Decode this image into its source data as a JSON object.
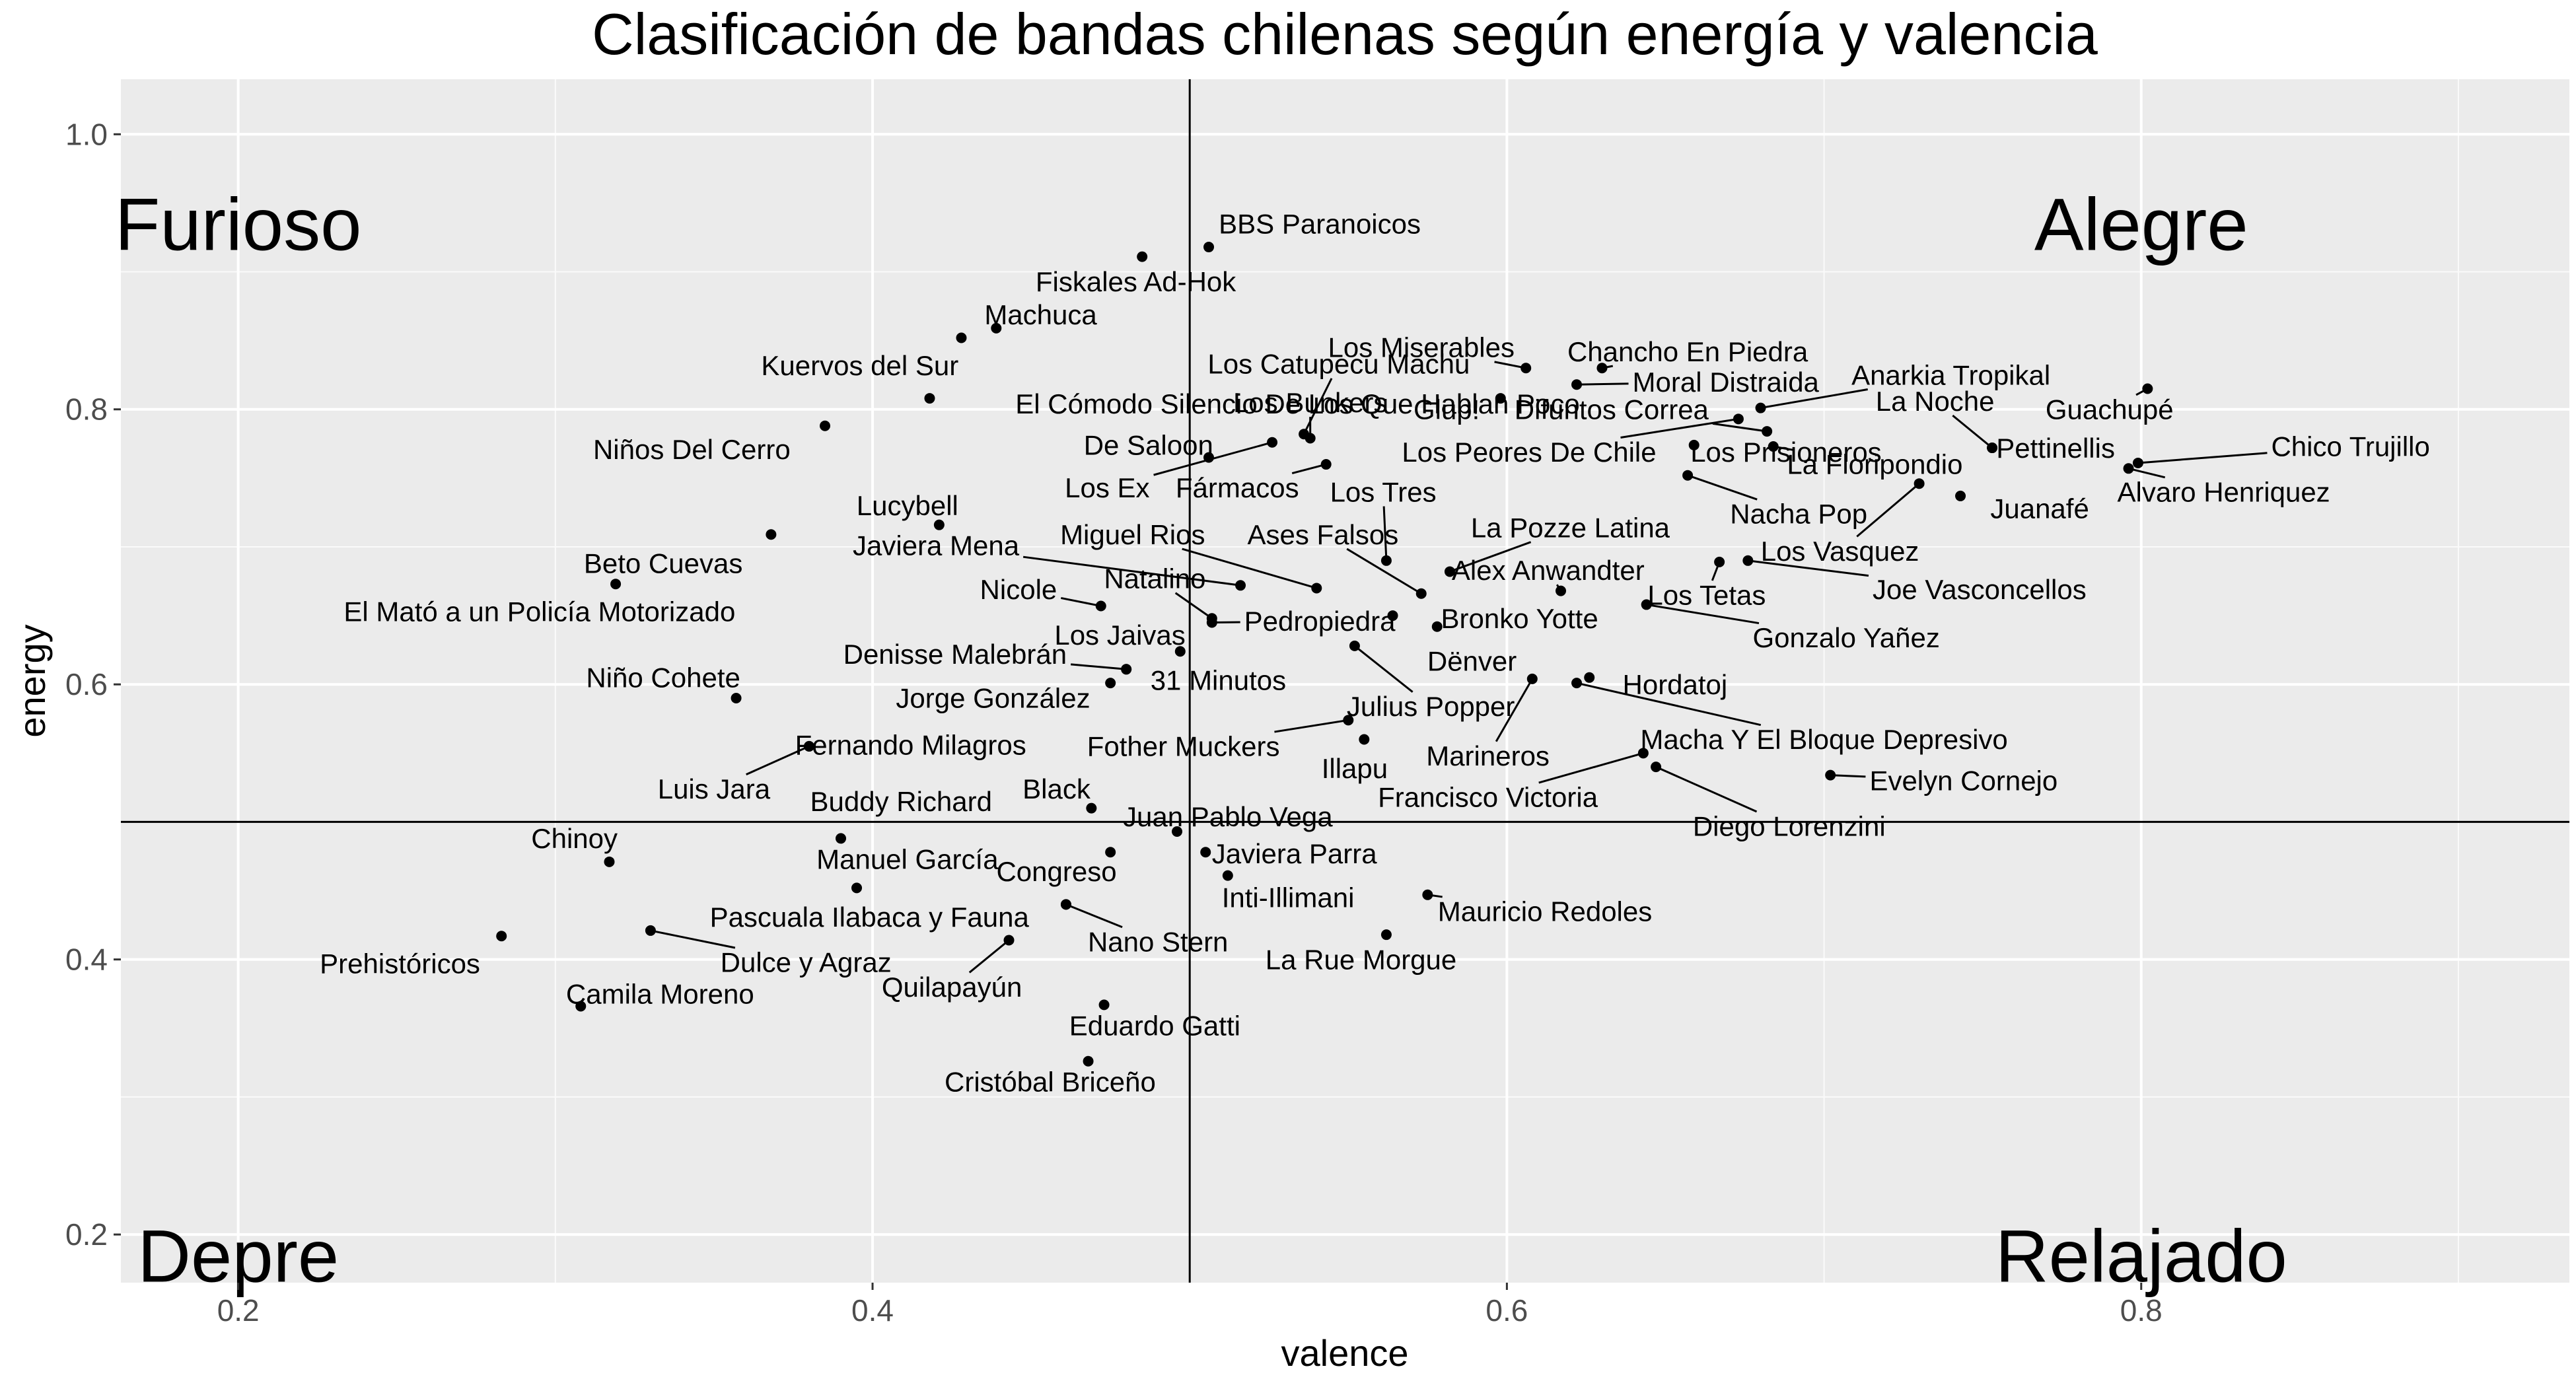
{
  "chart_data": {
    "type": "scatter",
    "title": "Clasificación de bandas chilenas según energía y valencia",
    "xlabel": "valence",
    "ylabel": "energy",
    "xlim": [
      0.163,
      0.935
    ],
    "ylim": [
      0.165,
      1.04
    ],
    "x_ticks": [
      0.2,
      0.4,
      0.6,
      0.8
    ],
    "y_ticks": [
      0.2,
      0.4,
      0.6,
      0.8,
      1.0
    ],
    "x_tick_labels": [
      "0.2",
      "0.4",
      "0.6",
      "0.8"
    ],
    "y_tick_labels": [
      "0.2",
      "0.4",
      "0.6",
      "0.8",
      "1.0"
    ],
    "grid": true,
    "reference_lines": {
      "x": 0.5,
      "y": 0.5
    },
    "quadrant_labels": [
      {
        "text": "Furioso",
        "x": 0.2,
        "y": 0.935
      },
      {
        "text": "Alegre",
        "x": 0.8,
        "y": 0.935
      },
      {
        "text": "Depre",
        "x": 0.2,
        "y": 0.185
      },
      {
        "text": "Relajado",
        "x": 0.8,
        "y": 0.185
      }
    ],
    "points": [
      {
        "name": "BBS Paranoicos",
        "x": 0.506,
        "y": 0.918,
        "lx": 0.541,
        "ly": 0.935
      },
      {
        "name": "Fiskales Ad-Hok",
        "x": 0.485,
        "y": 0.911,
        "lx": 0.483,
        "ly": 0.893
      },
      {
        "name": "Machuca",
        "x": 0.439,
        "y": 0.859,
        "lx": 0.453,
        "ly": 0.869
      },
      {
        "name": "Kuervos del Sur",
        "x": 0.428,
        "y": 0.852,
        "lx": 0.396,
        "ly": 0.832
      },
      {
        "name": "El Cómodo Silencio De Los Que Hablan Poco",
        "x": 0.418,
        "y": 0.808,
        "lx": 0.534,
        "ly": 0.804
      },
      {
        "name": "Niños Del Cerro",
        "x": 0.385,
        "y": 0.788,
        "lx": 0.343,
        "ly": 0.771
      },
      {
        "name": "Lucybell",
        "x": 0.421,
        "y": 0.716,
        "lx": 0.411,
        "ly": 0.73
      },
      {
        "name": "Beto Cuevas",
        "x": 0.368,
        "y": 0.709,
        "lx": 0.334,
        "ly": 0.688
      },
      {
        "name": "El Mató a un Policía Motorizado",
        "x": 0.319,
        "y": 0.673,
        "lx": 0.295,
        "ly": 0.653
      },
      {
        "name": "Niño Cohete",
        "x": 0.357,
        "y": 0.59,
        "lx": 0.334,
        "ly": 0.605
      },
      {
        "name": "Fernando Milagros",
        "x": 0.38,
        "y": 0.555,
        "lx": 0.412,
        "ly": 0.556,
        "lead": true
      },
      {
        "name": "Luis Jara",
        "x": 0.38,
        "y": 0.555,
        "lx": 0.35,
        "ly": 0.524,
        "lead": true
      },
      {
        "name": "Buddy Richard",
        "x": 0.39,
        "y": 0.488,
        "lx": 0.409,
        "ly": 0.515
      },
      {
        "name": "Chinoy",
        "x": 0.317,
        "y": 0.471,
        "lx": 0.306,
        "ly": 0.488
      },
      {
        "name": "Manuel García",
        "x": 0.395,
        "y": 0.452,
        "lx": 0.411,
        "ly": 0.473
      },
      {
        "name": "Prehistóricos",
        "x": 0.283,
        "y": 0.417,
        "lx": 0.251,
        "ly": 0.397
      },
      {
        "name": "Dulce y Agraz",
        "x": 0.33,
        "y": 0.421,
        "lx": 0.379,
        "ly": 0.398,
        "lead": true
      },
      {
        "name": "Camila Moreno",
        "x": 0.308,
        "y": 0.366,
        "lx": 0.333,
        "ly": 0.375
      },
      {
        "name": "Los Catupecu Machu",
        "x": 0.536,
        "y": 0.782,
        "lx": 0.547,
        "ly": 0.833,
        "lead": true
      },
      {
        "name": "Los Bunkers",
        "x": 0.538,
        "y": 0.779,
        "lx": 0.538,
        "ly": 0.805,
        "lead": true
      },
      {
        "name": "De Saloon",
        "x": 0.506,
        "y": 0.765,
        "lx": 0.487,
        "ly": 0.774
      },
      {
        "name": "Los Ex",
        "x": 0.526,
        "y": 0.776,
        "lx": 0.474,
        "ly": 0.743,
        "lead": true
      },
      {
        "name": "Fármacos",
        "x": 0.543,
        "y": 0.76,
        "lx": 0.515,
        "ly": 0.743,
        "lead": true
      },
      {
        "name": "Javiera Mena",
        "x": 0.516,
        "y": 0.672,
        "lx": 0.42,
        "ly": 0.701,
        "lead": true
      },
      {
        "name": "Miguel Rios",
        "x": 0.54,
        "y": 0.67,
        "lx": 0.482,
        "ly": 0.709,
        "lead": true
      },
      {
        "name": "Ases Falsos",
        "x": 0.573,
        "y": 0.666,
        "lx": 0.542,
        "ly": 0.709,
        "lead": true
      },
      {
        "name": "Nicole",
        "x": 0.472,
        "y": 0.657,
        "lx": 0.446,
        "ly": 0.669,
        "lead": true
      },
      {
        "name": "Natalino",
        "x": 0.507,
        "y": 0.648,
        "lx": 0.489,
        "ly": 0.677,
        "lead": true
      },
      {
        "name": "Pedropiedra",
        "x": 0.507,
        "y": 0.645,
        "lx": 0.541,
        "ly": 0.646,
        "lead": true
      },
      {
        "name": "Los Jaivas",
        "x": 0.497,
        "y": 0.624,
        "lx": 0.478,
        "ly": 0.636
      },
      {
        "name": "Denisse Malebrán",
        "x": 0.48,
        "y": 0.611,
        "lx": 0.426,
        "ly": 0.622,
        "lead": true
      },
      {
        "name": "31 Minutos",
        "x": 0.48,
        "y": 0.611,
        "lx": 0.509,
        "ly": 0.603
      },
      {
        "name": "Jorge González",
        "x": 0.475,
        "y": 0.601,
        "lx": 0.438,
        "ly": 0.59
      },
      {
        "name": "Fother Muckers",
        "x": 0.55,
        "y": 0.574,
        "lx": 0.498,
        "ly": 0.555,
        "lead": true
      },
      {
        "name": "Black",
        "x": 0.469,
        "y": 0.51,
        "lx": 0.458,
        "ly": 0.524
      },
      {
        "name": "Juan Pablo Vega",
        "x": 0.496,
        "y": 0.493,
        "lx": 0.512,
        "ly": 0.504
      },
      {
        "name": "Javiera Parra",
        "x": 0.505,
        "y": 0.478,
        "lx": 0.533,
        "ly": 0.477
      },
      {
        "name": "Congreso",
        "x": 0.475,
        "y": 0.478,
        "lx": 0.458,
        "ly": 0.464
      },
      {
        "name": "Inti-Illimani",
        "x": 0.512,
        "y": 0.461,
        "lx": 0.531,
        "ly": 0.445
      },
      {
        "name": "Pascuala Ilabaca y Fauna",
        "x": 0.461,
        "y": 0.44,
        "lx": 0.399,
        "ly": 0.431
      },
      {
        "name": "Nano Stern",
        "x": 0.461,
        "y": 0.44,
        "lx": 0.49,
        "ly": 0.413,
        "lead": true
      },
      {
        "name": "Quilapayún",
        "x": 0.443,
        "y": 0.414,
        "lx": 0.425,
        "ly": 0.38,
        "lead": true
      },
      {
        "name": "Eduardo Gatti",
        "x": 0.473,
        "y": 0.367,
        "lx": 0.489,
        "ly": 0.352
      },
      {
        "name": "Cristóbal Briceño",
        "x": 0.468,
        "y": 0.326,
        "lx": 0.456,
        "ly": 0.311
      },
      {
        "name": "Illapu",
        "x": 0.555,
        "y": 0.56,
        "lx": 0.552,
        "ly": 0.539
      },
      {
        "name": "Julius Popper",
        "x": 0.552,
        "y": 0.628,
        "lx": 0.576,
        "ly": 0.584,
        "lead": true
      },
      {
        "name": "Mauricio Redoles",
        "x": 0.575,
        "y": 0.447,
        "lx": 0.612,
        "ly": 0.435,
        "lead": true
      },
      {
        "name": "La Rue Morgue",
        "x": 0.562,
        "y": 0.418,
        "lx": 0.554,
        "ly": 0.4
      },
      {
        "name": "Los Tres",
        "x": 0.562,
        "y": 0.69,
        "lx": 0.561,
        "ly": 0.74,
        "lead": true
      },
      {
        "name": "La Pozze Latina",
        "x": 0.582,
        "y": 0.682,
        "lx": 0.62,
        "ly": 0.714,
        "lead": true
      },
      {
        "name": "Alex Anwandter",
        "x": 0.617,
        "y": 0.668,
        "lx": 0.613,
        "ly": 0.683,
        "lead": true
      },
      {
        "name": "Bronko Yotte",
        "x": 0.564,
        "y": 0.65,
        "lx": 0.604,
        "ly": 0.648
      },
      {
        "name": "Dënver",
        "x": 0.578,
        "y": 0.642,
        "lx": 0.589,
        "ly": 0.617
      },
      {
        "name": "Marineros",
        "x": 0.608,
        "y": 0.604,
        "lx": 0.594,
        "ly": 0.548,
        "lead": true
      },
      {
        "name": "Hordatoj",
        "x": 0.626,
        "y": 0.605,
        "lx": 0.653,
        "ly": 0.6
      },
      {
        "name": "Macha Y El Bloque Depresivo",
        "x": 0.622,
        "y": 0.601,
        "lx": 0.7,
        "ly": 0.56,
        "lead": true
      },
      {
        "name": "Francisco Victoria",
        "x": 0.643,
        "y": 0.55,
        "lx": 0.594,
        "ly": 0.518,
        "lead": true
      },
      {
        "name": "Diego Lorenzini",
        "x": 0.647,
        "y": 0.54,
        "lx": 0.689,
        "ly": 0.497,
        "lead": true
      },
      {
        "name": "Evelyn Cornejo",
        "x": 0.702,
        "y": 0.534,
        "lx": 0.744,
        "ly": 0.53,
        "lead": true
      },
      {
        "name": "Los Miserables",
        "x": 0.606,
        "y": 0.83,
        "lx": 0.573,
        "ly": 0.845,
        "lead": true
      },
      {
        "name": "Chancho En Piedra",
        "x": 0.63,
        "y": 0.83,
        "lx": 0.657,
        "ly": 0.842,
        "lead": true
      },
      {
        "name": "Moral Distraida",
        "x": 0.622,
        "y": 0.818,
        "lx": 0.669,
        "ly": 0.82,
        "lead": true
      },
      {
        "name": "Anarkia Tropikal",
        "x": 0.68,
        "y": 0.801,
        "lx": 0.74,
        "ly": 0.825,
        "lead": true
      },
      {
        "name": "Glup!",
        "x": 0.598,
        "y": 0.808,
        "lx": 0.581,
        "ly": 0.8
      },
      {
        "name": "Difuntos Correa",
        "x": 0.682,
        "y": 0.784,
        "lx": 0.633,
        "ly": 0.8,
        "lead": true
      },
      {
        "name": "Los Peores De Chile",
        "x": 0.673,
        "y": 0.793,
        "lx": 0.607,
        "ly": 0.769,
        "lead": true
      },
      {
        "name": "Los Prisioneros",
        "x": 0.659,
        "y": 0.774,
        "lx": 0.688,
        "ly": 0.769,
        "lead": true
      },
      {
        "name": "La Floripondio",
        "x": 0.684,
        "y": 0.773,
        "lx": 0.716,
        "ly": 0.76,
        "lead": true
      },
      {
        "name": "Nacha Pop",
        "x": 0.657,
        "y": 0.752,
        "lx": 0.692,
        "ly": 0.724,
        "lead": true
      },
      {
        "name": "La Noche",
        "x": 0.753,
        "y": 0.772,
        "lx": 0.735,
        "ly": 0.806,
        "lead": true
      },
      {
        "name": "Pettinellis",
        "x": 0.753,
        "y": 0.772,
        "lx": 0.773,
        "ly": 0.772,
        "lead": true
      },
      {
        "name": "Guachupé",
        "x": 0.802,
        "y": 0.815,
        "lx": 0.79,
        "ly": 0.8,
        "lead": true
      },
      {
        "name": "Chico Trujillo",
        "x": 0.799,
        "y": 0.761,
        "lx": 0.866,
        "ly": 0.773,
        "lead": true
      },
      {
        "name": "Alvaro Henriquez",
        "x": 0.796,
        "y": 0.757,
        "lx": 0.826,
        "ly": 0.74,
        "lead": true
      },
      {
        "name": "Juanafé",
        "x": 0.743,
        "y": 0.737,
        "lx": 0.768,
        "ly": 0.728
      },
      {
        "name": "Los Vasquez",
        "x": 0.73,
        "y": 0.746,
        "lx": 0.705,
        "ly": 0.697,
        "lead": true
      },
      {
        "name": "Joe Vasconcellos",
        "x": 0.676,
        "y": 0.69,
        "lx": 0.749,
        "ly": 0.669,
        "lead": true
      },
      {
        "name": "Los Tetas",
        "x": 0.667,
        "y": 0.689,
        "lx": 0.663,
        "ly": 0.665,
        "lead": true
      },
      {
        "name": "Gonzalo Yañez",
        "x": 0.644,
        "y": 0.658,
        "lx": 0.707,
        "ly": 0.634,
        "lead": true
      }
    ]
  }
}
